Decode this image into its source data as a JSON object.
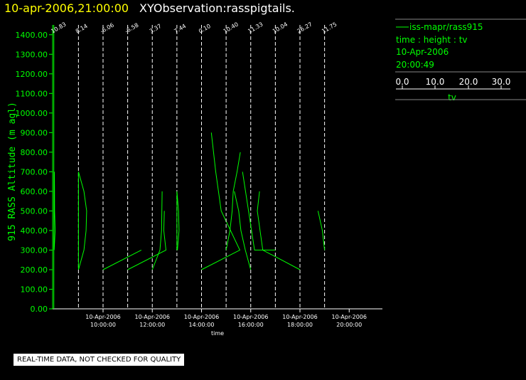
{
  "title": {
    "date": "10-apr-2006,21:00:00",
    "observation": "XYObservation:rasspigtails."
  },
  "legend": {
    "series": "iss-mapr/rass915",
    "axes": "time : height : tv",
    "date": "10-Apr-2006",
    "time": "20:00:49",
    "scale_ticks": [
      "0.0",
      "10.0",
      "20.0",
      "30.0"
    ],
    "unit": "tv"
  },
  "notice": "REAL-TIME DATA, NOT CHECKED FOR QUALITY",
  "chart_data": {
    "type": "line",
    "ylabel": "915 RASS Altitude (m agl)",
    "xlabel": "time",
    "ylim": [
      0,
      1450
    ],
    "yticks": [
      "0.00",
      "100.00",
      "200.00",
      "300.00",
      "400.00",
      "500.00",
      "600.00",
      "700.00",
      "800.00",
      "900.00",
      "1000.00",
      "1100.00",
      "1200.00",
      "1300.00",
      "1400.00"
    ],
    "xlim": [
      7.95,
      21.35
    ],
    "xticks": [
      {
        "t": 10,
        "date": "10-Apr-2006",
        "time": "10:00:00"
      },
      {
        "t": 12,
        "date": "10-Apr-2006",
        "time": "12:00:00"
      },
      {
        "t": 14,
        "date": "10-Apr-2006",
        "time": "14:00:00"
      },
      {
        "t": 16,
        "date": "10-Apr-2006",
        "time": "16:00:00"
      },
      {
        "t": 18,
        "date": "10-Apr-2006",
        "time": "18:00:00"
      },
      {
        "t": 20,
        "date": "10-Apr-2006",
        "time": "20:00:00"
      }
    ],
    "tv_scale_per_hour": 22.5,
    "profiles": [
      {
        "t": 8.0,
        "label": "10.83",
        "solid": true,
        "points": [
          [
            0.0,
            300
          ],
          [
            0.5,
            700
          ],
          [
            0.6,
            600
          ],
          [
            0.7,
            500
          ],
          [
            1.2,
            400
          ],
          [
            0.3,
            300
          ]
        ]
      },
      {
        "t": 9.0,
        "label": "8.14",
        "solid": false,
        "points": [
          [
            0.0,
            200
          ],
          [
            0.0,
            700
          ],
          [
            5.0,
            600
          ],
          [
            7.5,
            500
          ],
          [
            7.0,
            400
          ],
          [
            5.0,
            300
          ],
          [
            0.0,
            200
          ]
        ]
      },
      {
        "t": 10.0,
        "label": "-6.06",
        "solid": false,
        "points": [
          [
            0.0,
            200
          ],
          [
            35.0,
            300
          ]
        ]
      },
      {
        "t": 11.0,
        "label": "-6.58",
        "solid": false,
        "points": [
          [
            0.0,
            200
          ],
          [
            35.0,
            300
          ],
          [
            33.0,
            400
          ],
          [
            33.5,
            500
          ]
        ]
      },
      {
        "t": 12.0,
        "label": "3.37",
        "solid": false,
        "points": [
          [
            0.0,
            200
          ],
          [
            7.0,
            300
          ],
          [
            8.5,
            400
          ],
          [
            9.0,
            600
          ]
        ]
      },
      {
        "t": 13.0,
        "label": "7.44",
        "solid": false,
        "points": [
          [
            0.0,
            300
          ],
          [
            0.0,
            600
          ],
          [
            1.5,
            500
          ],
          [
            2.0,
            400
          ],
          [
            0.5,
            300
          ]
        ]
      },
      {
        "t": 14.0,
        "label": "0.10",
        "solid": false,
        "points": [
          [
            0.0,
            200
          ],
          [
            35.0,
            300
          ],
          [
            18.0,
            500
          ],
          [
            13.0,
            700
          ],
          [
            9.0,
            900
          ]
        ]
      },
      {
        "t": 15.0,
        "label": "10.40",
        "solid": false,
        "points": [
          [
            0.0,
            300
          ],
          [
            3.5,
            400
          ],
          [
            5.5,
            500
          ],
          [
            6.5,
            600
          ],
          [
            10.0,
            700
          ],
          [
            13.0,
            800
          ]
        ]
      },
      {
        "t": 16.0,
        "label": "11.33",
        "solid": false,
        "points": [
          [
            0.0,
            200
          ],
          [
            -5.0,
            300
          ],
          [
            -9.0,
            400
          ],
          [
            -11.0,
            500
          ],
          [
            -15.0,
            600
          ]
        ]
      },
      {
        "t": 17.0,
        "label": "10.04",
        "solid": false,
        "points": [
          [
            0.0,
            300
          ],
          [
            -19.0,
            300
          ],
          [
            -30.0,
            700
          ]
        ]
      },
      {
        "t": 18.0,
        "label": "26.27",
        "solid": false,
        "points": [
          [
            0.0,
            200
          ],
          [
            -34.0,
            300
          ],
          [
            -39.0,
            500
          ],
          [
            -37.0,
            600
          ]
        ]
      },
      {
        "t": 19.0,
        "label": "11.75",
        "solid": false,
        "points": [
          [
            0.0,
            300
          ],
          [
            -2.0,
            400
          ],
          [
            -6.0,
            500
          ]
        ]
      }
    ]
  }
}
